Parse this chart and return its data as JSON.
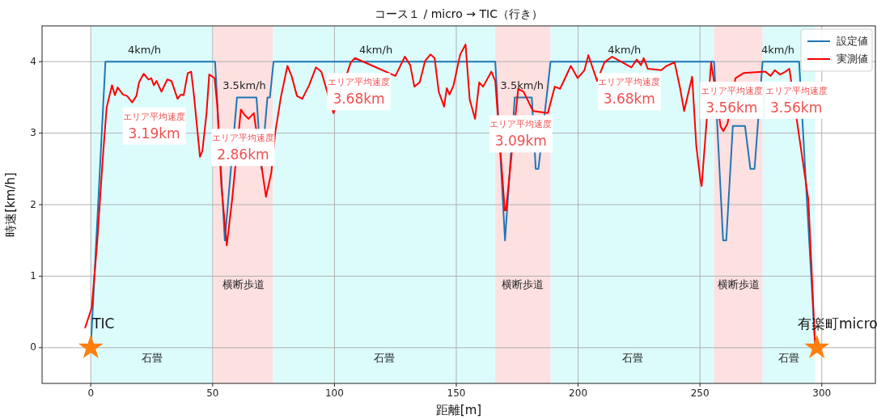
{
  "chart_data": {
    "type": "line",
    "title": "コース１ / micro → TIC（行き）",
    "xlabel": "距離[m]",
    "ylabel": "時速[km/h]",
    "xlim": [
      -20,
      322
    ],
    "ylim": [
      -0.5,
      4.5
    ],
    "xticks": [
      0,
      50,
      100,
      150,
      200,
      250,
      300
    ],
    "yticks": [
      0,
      1,
      2,
      3,
      4
    ],
    "grid": true,
    "legend": "top right",
    "bands": [
      {
        "axis": "x",
        "from": 0,
        "to": 50.5,
        "label": "石畳",
        "color": "#dcfcfc"
      },
      {
        "axis": "x",
        "from": 50.5,
        "to": 74.8,
        "label": "横断歩道",
        "color": "#fde0e0"
      },
      {
        "axis": "x",
        "from": 74.8,
        "to": 166,
        "label": "石畳",
        "color": "#dcfcfc"
      },
      {
        "axis": "x",
        "from": 166,
        "to": 188.7,
        "label": "横断歩道",
        "color": "#fde0e0"
      },
      {
        "axis": "x",
        "from": 188.7,
        "to": 255.8,
        "label": "石畳",
        "color": "#dcfcfc"
      },
      {
        "axis": "x",
        "from": 255.8,
        "to": 275.7,
        "label": "横断歩道",
        "color": "#fde0e0"
      },
      {
        "axis": "x",
        "from": 275.7,
        "to": 297.3,
        "label": "石畳",
        "color": "#dcfcfc"
      }
    ],
    "series": [
      {
        "name": "設定値",
        "color": "#1f77b4",
        "marker": "none",
        "x": [
          0,
          6,
          51,
          55,
          60,
          68,
          70,
          72.5,
          73.5,
          75,
          166,
          170,
          174,
          181,
          182.6,
          183.7,
          188.7,
          255.8,
          259.5,
          260.8,
          263.5,
          268.5,
          270.7,
          272.4,
          275.7,
          290.7,
          297.3
        ],
        "values": [
          0,
          4,
          4,
          1.5,
          3.5,
          3.5,
          2.5,
          3.5,
          3.5,
          4,
          4,
          1.5,
          3.5,
          3.5,
          2.5,
          2.5,
          4,
          4,
          1.5,
          1.5,
          3.1,
          3.1,
          2.5,
          2.5,
          4,
          4,
          0
        ]
      },
      {
        "name": "実測値",
        "color": "#ff0000",
        "marker": "none",
        "x": [
          -2.3,
          0.4,
          2.7,
          4.9,
          6.5,
          8.7,
          9.9,
          11,
          13.2,
          14.9,
          17,
          18.7,
          19.8,
          21.7,
          23.7,
          24.8,
          25.9,
          27,
          29,
          31.4,
          33.1,
          35.6,
          37,
          38.1,
          39.8,
          41.2,
          42.3,
          44.8,
          45.8,
          47.5,
          48.6,
          50.8,
          51.9,
          53.6,
          55.8,
          58,
          61.6,
          63,
          64.7,
          66.9,
          71.9,
          74.1,
          75.7,
          78,
          80.7,
          82.4,
          84.6,
          86.8,
          89.6,
          92.4,
          94.6,
          99.6,
          106.7,
          108.4,
          118.4,
          125,
          128.9,
          131.1,
          132.8,
          135,
          137.2,
          139.4,
          141.1,
          142.8,
          145,
          146.1,
          147.2,
          148.8,
          151.6,
          153.8,
          155.5,
          157.7,
          159.4,
          161,
          164.4,
          166,
          169.9,
          170.4,
          175.4,
          177.6,
          181.5,
          187.6,
          190.4,
          192.6,
          197,
          199.8,
          202.6,
          204.2,
          207.8,
          210.8,
          213.9,
          221.9,
          224.1,
          225.8,
          226.9,
          228.6,
          234.1,
          236.3,
          239.6,
          241.9,
          243.5,
          246.8,
          248.5,
          250.2,
          250.7,
          254.6,
          258.5,
          259.6,
          261.3,
          264.6,
          267.9,
          276.8,
          279,
          280.7,
          282.9,
          285.1,
          286.7,
          294.5,
          297.2
        ],
        "values": [
          0.28,
          0.56,
          1.51,
          2.64,
          3.36,
          3.67,
          3.53,
          3.64,
          3.54,
          3.52,
          3.43,
          3.52,
          3.71,
          3.83,
          3.75,
          3.77,
          3.67,
          3.73,
          3.58,
          3.75,
          3.73,
          3.48,
          3.54,
          3.53,
          3.84,
          3.86,
          3.54,
          2.67,
          2.75,
          3.28,
          3.82,
          3.77,
          3.39,
          2.26,
          1.43,
          2.07,
          3.33,
          3.26,
          3.2,
          3.28,
          2.11,
          2.45,
          3.01,
          3.5,
          3.94,
          3.8,
          3.52,
          3.48,
          3.67,
          3.92,
          3.86,
          3.28,
          3.99,
          4.05,
          3.9,
          3.8,
          4.07,
          3.95,
          3.65,
          3.71,
          4.01,
          4.1,
          4.05,
          3.58,
          3.37,
          3.63,
          3.54,
          3.66,
          4.1,
          4.24,
          3.47,
          3.2,
          3.71,
          3.65,
          3.86,
          3.73,
          1.92,
          1.92,
          3.62,
          3.58,
          3.31,
          3.28,
          3.65,
          3.62,
          3.94,
          3.77,
          3.88,
          4.09,
          3.73,
          3.99,
          4.07,
          3.92,
          4.03,
          3.95,
          4.05,
          3.9,
          3.88,
          3.94,
          3.99,
          3.62,
          3.31,
          3.79,
          2.82,
          2.34,
          2.26,
          3.99,
          3.09,
          3.03,
          3.13,
          3.77,
          3.84,
          3.86,
          3.8,
          3.88,
          3.82,
          3.86,
          3.9,
          2.07,
          0.08
        ]
      },
      {
        "type": "scatter",
        "color": "#ff7f0e",
        "marker": "star",
        "x": [
          0,
          298
        ],
        "values": [
          0,
          0
        ]
      }
    ],
    "annotations": [
      {
        "text": "4km/h",
        "x": 22,
        "y": 4
      },
      {
        "text": "3.5km/h",
        "x": 63,
        "y": 3.5
      },
      {
        "text": "4km/h",
        "x": 117,
        "y": 4
      },
      {
        "text": "3.5km/h",
        "x": 177,
        "y": 3.5
      },
      {
        "text": "4km/h",
        "x": 219,
        "y": 4
      },
      {
        "text": "4km/h",
        "x": 282,
        "y": 4
      },
      "エリア平均速度\n3.19km",
      "エリア平均速度\n2.86km",
      "エリア平均速度\n3.68km",
      "エリア平均速度\n3.09km",
      "エリア平均速度\n3.68km",
      "エリア平均速度\n3.56km",
      "エリア平均速度\n3.56km",
      {
        "text": "TIC",
        "x": 0,
        "y": 0
      },
      {
        "text": "有楽町micro",
        "x": 298,
        "y": 0
      }
    ]
  }
}
